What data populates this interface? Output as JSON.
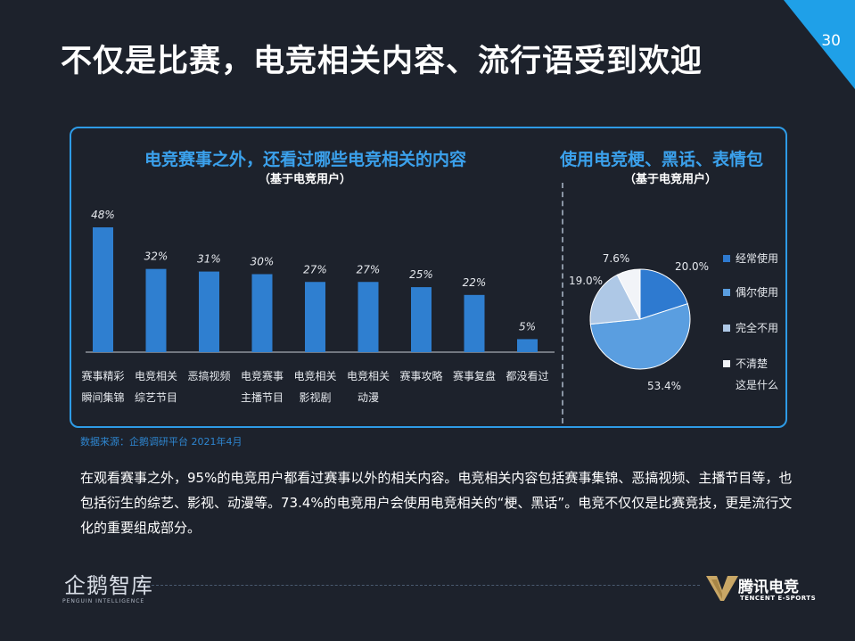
{
  "page": {
    "title": "不仅是比赛，电竞相关内容、流行语受到欢迎",
    "page_number": "30"
  },
  "bar_panel": {
    "heading": "电竞赛事之外，还看过哪些电竞相关的内容",
    "subheading": "（基于电竞用户）"
  },
  "pie_panel": {
    "heading": "使用电竞梗、黑话、表情包",
    "subheading": "（基于电竞用户）"
  },
  "chart_data": [
    {
      "type": "bar",
      "categories": [
        [
          "赛事精彩",
          "瞬间集锦"
        ],
        [
          "电竞相关",
          "综艺节目"
        ],
        [
          "恶搞视频"
        ],
        [
          "电竞赛事",
          "主播节目"
        ],
        [
          "电竞相关",
          "影视剧"
        ],
        [
          "电竞相关",
          "动漫"
        ],
        [
          "赛事攻略"
        ],
        [
          "赛事复盘"
        ],
        [
          "都没看过"
        ]
      ],
      "values": [
        48,
        32,
        31,
        30,
        27,
        27,
        25,
        22,
        5
      ],
      "value_labels": [
        "48%",
        "32%",
        "31%",
        "30%",
        "27%",
        "27%",
        "25%",
        "22%",
        "5%"
      ],
      "unit": "%",
      "ylim": [
        0,
        50
      ],
      "bar_color": "#2f7fd0"
    },
    {
      "type": "pie",
      "labels": [
        "经常使用",
        "偶尔使用",
        "完全不用",
        [
          "不清楚",
          "这是什么"
        ]
      ],
      "values": [
        20.0,
        53.4,
        19.0,
        7.6
      ],
      "value_labels": [
        "20.0%",
        "53.4%",
        "19.0%",
        "7.6%"
      ],
      "colors": [
        "#2e7ad0",
        "#5a9ee0",
        "#aec8e6",
        "#f2f4f8"
      ],
      "legend_placement": "right"
    }
  ],
  "source": "数据来源：企鹅调研平台 2021年4月",
  "body_text": "在观看赛事之外，95%的电竞用户都看过赛事以外的相关内容。电竞相关内容包括赛事集锦、恶搞视频、主播节目等，也包括衍生的综艺、影视、动漫等。73.4%的电竞用户会使用电竞相关的“梗、黑话”。电竞不仅仅是比赛竞技，更是流行文化的重要组成部分。",
  "footer": {
    "left_logo": "企鹅智库",
    "left_logo_sub": "PENGUIN INTELLIGENCE",
    "right_logo": "腾讯电竞",
    "right_logo_sub": "TENCENT E-SPORTS"
  },
  "colors": {
    "background": "#1d222c",
    "accent": "#2e9be6",
    "heading": "#3ba1ec"
  }
}
